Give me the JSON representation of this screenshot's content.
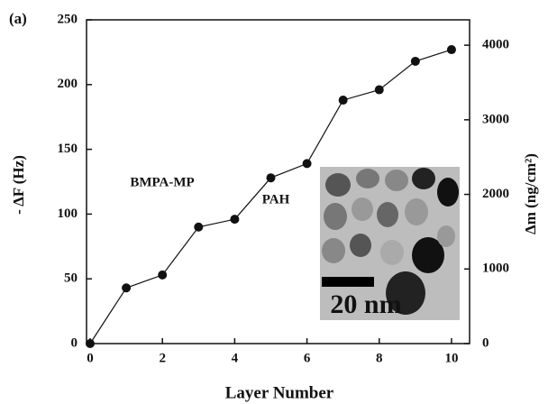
{
  "chart_data": {
    "type": "line",
    "xlabel": "Layer Number",
    "ylabel": "- ΔF (Hz)",
    "y2label": "Δm (ng/cm²)",
    "x": [
      0,
      1,
      2,
      3,
      4,
      5,
      6,
      7,
      8,
      9,
      10
    ],
    "values": [
      0,
      43,
      53,
      90,
      96,
      128,
      139,
      188,
      196,
      218,
      227
    ],
    "color": "#111111",
    "xlim": [
      -0.1,
      10.5
    ],
    "xticks": [
      0,
      2,
      4,
      6,
      8,
      10
    ],
    "ylim": [
      0,
      250
    ],
    "yticks": [
      0,
      50,
      100,
      150,
      200,
      250
    ],
    "y2lim": [
      0,
      4340
    ],
    "y2ticks": [
      0,
      1000,
      2000,
      3000,
      4000
    ],
    "annotations": [
      "(a)",
      "BMPA-MP",
      "PAH",
      "20 nm"
    ]
  }
}
